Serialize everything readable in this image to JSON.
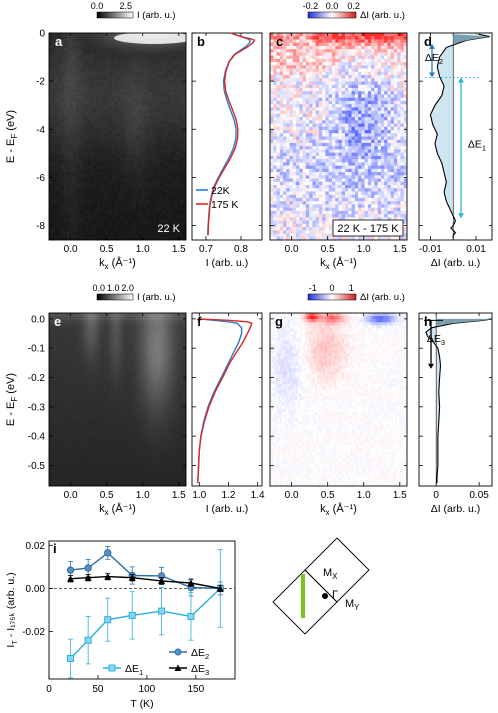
{
  "chart_data": [
    {
      "panel": "a",
      "type": "heatmap",
      "description": "ARPES intensity map, wide energy range",
      "xlabel": "k_x (Å^-1)",
      "ylabel": "E - E_F (eV)",
      "xlim": [
        -0.3,
        1.6
      ],
      "ylim": [
        -8.6,
        0
      ],
      "xticks": [
        "0.0",
        "0.5",
        "1.0",
        "1.5"
      ],
      "yticks": [
        "0",
        "-2",
        "-4",
        "-6",
        "-8"
      ],
      "colorbar": {
        "ticks": [
          "0.0",
          "2.5"
        ],
        "label": "I (arb. u.)"
      },
      "inset_text": "22 K",
      "colormap": "grayscale"
    },
    {
      "panel": "b",
      "type": "line",
      "xlabel": "I (arb. u.)",
      "xlim": [
        0.66,
        0.86
      ],
      "xticks": [
        "0.7",
        "0.8"
      ],
      "ylim": [
        -8.6,
        0
      ],
      "legend": [
        "22K",
        "175 K"
      ],
      "series": [
        {
          "name": "22K",
          "color": "#2e7fc2",
          "x": [
            0.705,
            0.706,
            0.708,
            0.71,
            0.715,
            0.722,
            0.735,
            0.75,
            0.765,
            0.778,
            0.785,
            0.786,
            0.78,
            0.77,
            0.76,
            0.752,
            0.75,
            0.755,
            0.765,
            0.78,
            0.8,
            0.815,
            0.825,
            0.826,
            0.82,
            0.81,
            0.8,
            0.79,
            0.78,
            0.77
          ],
          "y": [
            -8.4,
            -8.0,
            -7.6,
            -7.2,
            -6.8,
            -6.4,
            -6.0,
            -5.6,
            -5.2,
            -4.8,
            -4.4,
            -4.0,
            -3.6,
            -3.2,
            -2.8,
            -2.4,
            -2.0,
            -1.6,
            -1.2,
            -0.9,
            -0.7,
            -0.55,
            -0.4,
            -0.3,
            -0.25,
            -0.2,
            -0.15,
            -0.1,
            -0.05,
            0.0
          ]
        },
        {
          "name": "175 K",
          "color": "#d42a2a",
          "x": [
            0.706,
            0.707,
            0.709,
            0.711,
            0.716,
            0.724,
            0.738,
            0.754,
            0.77,
            0.783,
            0.79,
            0.791,
            0.786,
            0.776,
            0.765,
            0.756,
            0.753,
            0.757,
            0.766,
            0.782,
            0.805,
            0.822,
            0.835,
            0.838,
            0.83,
            0.815,
            0.8,
            0.79,
            0.78,
            0.77
          ],
          "y": [
            -8.4,
            -8.0,
            -7.6,
            -7.2,
            -6.8,
            -6.4,
            -6.0,
            -5.6,
            -5.2,
            -4.8,
            -4.4,
            -4.0,
            -3.6,
            -3.2,
            -2.8,
            -2.4,
            -2.0,
            -1.6,
            -1.2,
            -0.9,
            -0.7,
            -0.55,
            -0.4,
            -0.3,
            -0.25,
            -0.2,
            -0.15,
            -0.1,
            -0.05,
            0.0
          ]
        }
      ]
    },
    {
      "panel": "c",
      "type": "heatmap",
      "description": "Difference map 22 K - 175 K",
      "xlabel": "k_x (Å^-1)",
      "xlim": [
        -0.3,
        1.6
      ],
      "ylim": [
        -8.6,
        0
      ],
      "xticks": [
        "0.0",
        "0.5",
        "1.0",
        "1.5"
      ],
      "colorbar": {
        "ticks": [
          "-0.2",
          "0.0",
          "0.2"
        ],
        "label": "ΔI (arb. u.)"
      },
      "inset_text": "22 K - 175 K",
      "colormap": "blue-white-red"
    },
    {
      "panel": "d",
      "type": "area",
      "xlabel": "ΔI (arb. u.)",
      "xlim": [
        -0.015,
        0.017
      ],
      "xticks": [
        "-0.01",
        "0.00",
        "0.01"
      ],
      "ylim": [
        -8.6,
        0
      ],
      "annotations": [
        "ΔE2",
        "ΔE1"
      ],
      "x": [
        0.011,
        0.016,
        0.006,
        -0.003,
        -0.006,
        -0.007,
        -0.006,
        -0.004,
        -0.005,
        -0.008,
        -0.01,
        -0.009,
        -0.007,
        -0.008,
        -0.007,
        -0.005,
        -0.004,
        -0.003,
        -0.004,
        -0.003,
        -0.002,
        -0.001,
        0.0,
        0.001,
        0.0,
        -0.001,
        0.0,
        0.001,
        0.0,
        0.0
      ],
      "y": [
        -0.05,
        -0.15,
        -0.3,
        -0.6,
        -1.0,
        -1.4,
        -1.8,
        -2.2,
        -2.6,
        -3.0,
        -3.4,
        -3.8,
        -4.2,
        -4.6,
        -5.0,
        -5.4,
        -5.8,
        -6.2,
        -6.6,
        -7.0,
        -7.2,
        -7.4,
        -7.6,
        -7.8,
        -8.0,
        -8.1,
        -8.2,
        -8.3,
        -8.4,
        -8.5
      ]
    },
    {
      "panel": "e",
      "type": "heatmap",
      "description": "ARPES intensity map near Fermi level",
      "xlabel": "k_x (Å^-1)",
      "ylabel": "E - E_F (eV)",
      "xlim": [
        -0.3,
        1.6
      ],
      "ylim": [
        -0.57,
        0.02
      ],
      "xticks": [
        "0.0",
        "0.5",
        "1.0",
        "1.5"
      ],
      "yticks": [
        "0.0",
        "-0.1",
        "-0.2",
        "-0.3",
        "-0.4",
        "-0.5"
      ],
      "colorbar": {
        "ticks": [
          "0.0",
          "1.0",
          "2.0"
        ],
        "label": "I (arb. u.)"
      },
      "colormap": "grayscale"
    },
    {
      "panel": "f",
      "type": "line",
      "xlabel": "I (arb. u.)",
      "xlim": [
        0.95,
        1.43
      ],
      "xticks": [
        "1.0",
        "1.2",
        "1.4"
      ],
      "ylim": [
        -0.57,
        0.02
      ],
      "series": [
        {
          "name": "22 K",
          "color": "#2e7fc2",
          "x": [
            0.99,
            0.995,
            1.0,
            1.01,
            1.03,
            1.06,
            1.1,
            1.15,
            1.2,
            1.24,
            1.27,
            1.29,
            1.29,
            1.26,
            1.2,
            1.1,
            1.0
          ],
          "y": [
            -0.56,
            -0.5,
            -0.45,
            -0.4,
            -0.35,
            -0.3,
            -0.25,
            -0.2,
            -0.15,
            -0.11,
            -0.08,
            -0.05,
            -0.03,
            -0.015,
            -0.01,
            -0.005,
            0.0
          ]
        },
        {
          "name": "175 K",
          "color": "#d42a2a",
          "x": [
            0.99,
            0.995,
            1.0,
            1.012,
            1.035,
            1.066,
            1.108,
            1.16,
            1.21,
            1.26,
            1.3,
            1.33,
            1.35,
            1.36,
            1.33,
            1.2,
            1.0
          ],
          "y": [
            -0.56,
            -0.5,
            -0.45,
            -0.4,
            -0.35,
            -0.3,
            -0.25,
            -0.2,
            -0.15,
            -0.11,
            -0.08,
            -0.05,
            -0.03,
            -0.015,
            -0.01,
            -0.005,
            0.0
          ]
        }
      ]
    },
    {
      "panel": "g",
      "type": "heatmap",
      "description": "Difference map near Fermi level",
      "xlabel": "k_x (Å^-1)",
      "xlim": [
        -0.3,
        1.6
      ],
      "ylim": [
        -0.57,
        0.02
      ],
      "xticks": [
        "0.0",
        "0.5",
        "1.0",
        "1.5"
      ],
      "colorbar": {
        "ticks": [
          "-1",
          "0",
          "1"
        ],
        "label": "ΔI (arb. u.)"
      },
      "colormap": "blue-white-red"
    },
    {
      "panel": "h",
      "type": "area",
      "xlabel": "ΔI (arb. u.)",
      "xlim": [
        -0.02,
        0.065
      ],
      "xticks": [
        "0",
        "0.05"
      ],
      "ylim": [
        -0.57,
        0.02
      ],
      "annotations": [
        "ΔE3"
      ],
      "x": [
        0.065,
        0.055,
        0.02,
        -0.005,
        -0.012,
        -0.01,
        -0.003,
        0.002,
        0.004,
        0.005,
        0.004,
        0.003,
        0.004,
        0.003,
        0.002,
        0.002,
        0.002,
        0.001,
        0.001
      ],
      "y": [
        0.0,
        -0.005,
        -0.015,
        -0.03,
        -0.045,
        -0.06,
        -0.08,
        -0.1,
        -0.13,
        -0.16,
        -0.2,
        -0.25,
        -0.3,
        -0.35,
        -0.4,
        -0.45,
        -0.5,
        -0.54,
        -0.56
      ]
    },
    {
      "panel": "i",
      "type": "line",
      "xlabel": "T (K)",
      "ylabel": "I_T - I_175K (arb. u.)",
      "xlim": [
        0,
        190
      ],
      "ylim": [
        -0.042,
        0.022
      ],
      "xticks": [
        "0",
        "50",
        "100",
        "150"
      ],
      "yticks": [
        "0.02",
        "0.00",
        "-0.02"
      ],
      "categories": [
        22,
        40,
        60,
        85,
        115,
        145,
        175
      ],
      "series": [
        {
          "name": "ΔE2",
          "color": "#2b6ea5",
          "marker": "circle",
          "values": [
            0.0085,
            0.0095,
            0.0165,
            0.006,
            0.0058,
            0.0005,
            0.0
          ],
          "errors": [
            0.004,
            0.004,
            0.003,
            0.004,
            0.004,
            0.004,
            0.003
          ]
        },
        {
          "name": "ΔE1",
          "color": "#2ab0de",
          "marker": "square",
          "values": [
            -0.0325,
            -0.024,
            -0.0145,
            -0.0125,
            -0.0105,
            -0.013,
            0.0
          ],
          "errors": [
            0.009,
            0.011,
            0.01,
            0.011,
            0.011,
            0.011,
            0.018
          ]
        },
        {
          "name": "ΔE3",
          "color": "#000000",
          "marker": "triangle",
          "values": [
            0.0045,
            0.005,
            0.0055,
            0.005,
            0.0035,
            0.0025,
            0.0
          ],
          "errors": [
            0.0015,
            0.0015,
            0.0015,
            0.0015,
            0.0015,
            0.0015,
            0.0015
          ]
        }
      ],
      "legend": [
        "ΔE2",
        "ΔE1",
        "ΔE3"
      ]
    },
    {
      "panel": "inset",
      "type": "diagram",
      "labels": [
        "Mx",
        "Γ",
        "My"
      ]
    }
  ],
  "panel_labels": [
    "a",
    "b",
    "c",
    "d",
    "e",
    "f",
    "g",
    "h",
    "i"
  ],
  "colors": {
    "cut_line": "#7ac51f",
    "heat_blue": "#1f2fd0",
    "heat_red": "#d21d1d"
  }
}
